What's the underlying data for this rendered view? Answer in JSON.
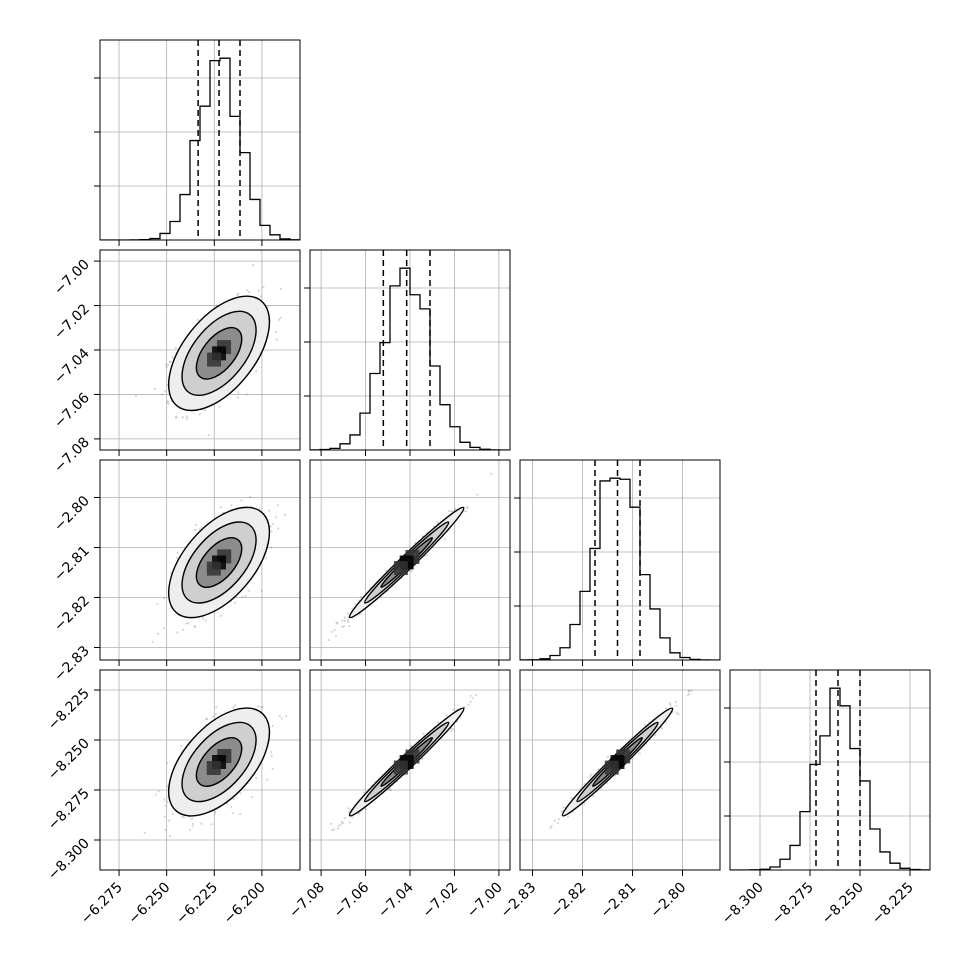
{
  "chart_data": {
    "type": "corner",
    "description_of_panels": "lower-triangle 4x4 corner plot: diagonal 1D histograms with dashed quantile lines; off-diagonal 2D scatter + density contours",
    "parameters": [
      {
        "index": 0,
        "range": [
          -6.285,
          -6.18
        ],
        "ticks": [
          -6.275,
          -6.25,
          -6.225,
          -6.2
        ],
        "tick_labels": [
          "−6.275",
          "−6.250",
          "−6.225",
          "−6.200"
        ],
        "mean": -6.2225,
        "sigma": 0.0108,
        "quantiles": [
          -6.2335,
          -6.2225,
          -6.2115
        ]
      },
      {
        "index": 1,
        "range": [
          -7.085,
          -6.995
        ],
        "ticks": [
          -7.08,
          -7.06,
          -7.04,
          -7.02,
          -7.0
        ],
        "tick_labels": [
          "−7.08",
          "−7.06",
          "−7.04",
          "−7.02",
          "−7.00"
        ],
        "mean": -7.0415,
        "sigma": 0.0105,
        "quantiles": [
          -7.052,
          -7.0415,
          -7.031
        ]
      },
      {
        "index": 2,
        "range": [
          -2.8325,
          -2.7925
        ],
        "ticks": [
          -2.83,
          -2.82,
          -2.81,
          -2.8
        ],
        "tick_labels": [
          "−2.83",
          "−2.82",
          "−2.81",
          "−2.80"
        ],
        "mean": -2.813,
        "sigma": 0.0045,
        "quantiles": [
          -2.8175,
          -2.813,
          -2.8085
        ]
      },
      {
        "index": 3,
        "range": [
          -8.315,
          -8.215
        ],
        "ticks": [
          -8.3,
          -8.275,
          -8.25,
          -8.225
        ],
        "tick_labels": [
          "−8.300",
          "−8.275",
          "−8.250",
          "−8.225"
        ],
        "mean": -8.261,
        "sigma": 0.011,
        "quantiles": [
          -8.272,
          -8.261,
          -8.25
        ]
      }
    ],
    "correlations": {
      "0-1": 0.55,
      "0-2": 0.55,
      "0-3": 0.55,
      "1-2": 0.985,
      "1-3": 0.985,
      "2-3": 0.985
    },
    "grid": true,
    "colors": {
      "points": "#888888",
      "density_mid": "#c8c8c8",
      "density_high": "#000000",
      "lines": "#000000"
    }
  }
}
